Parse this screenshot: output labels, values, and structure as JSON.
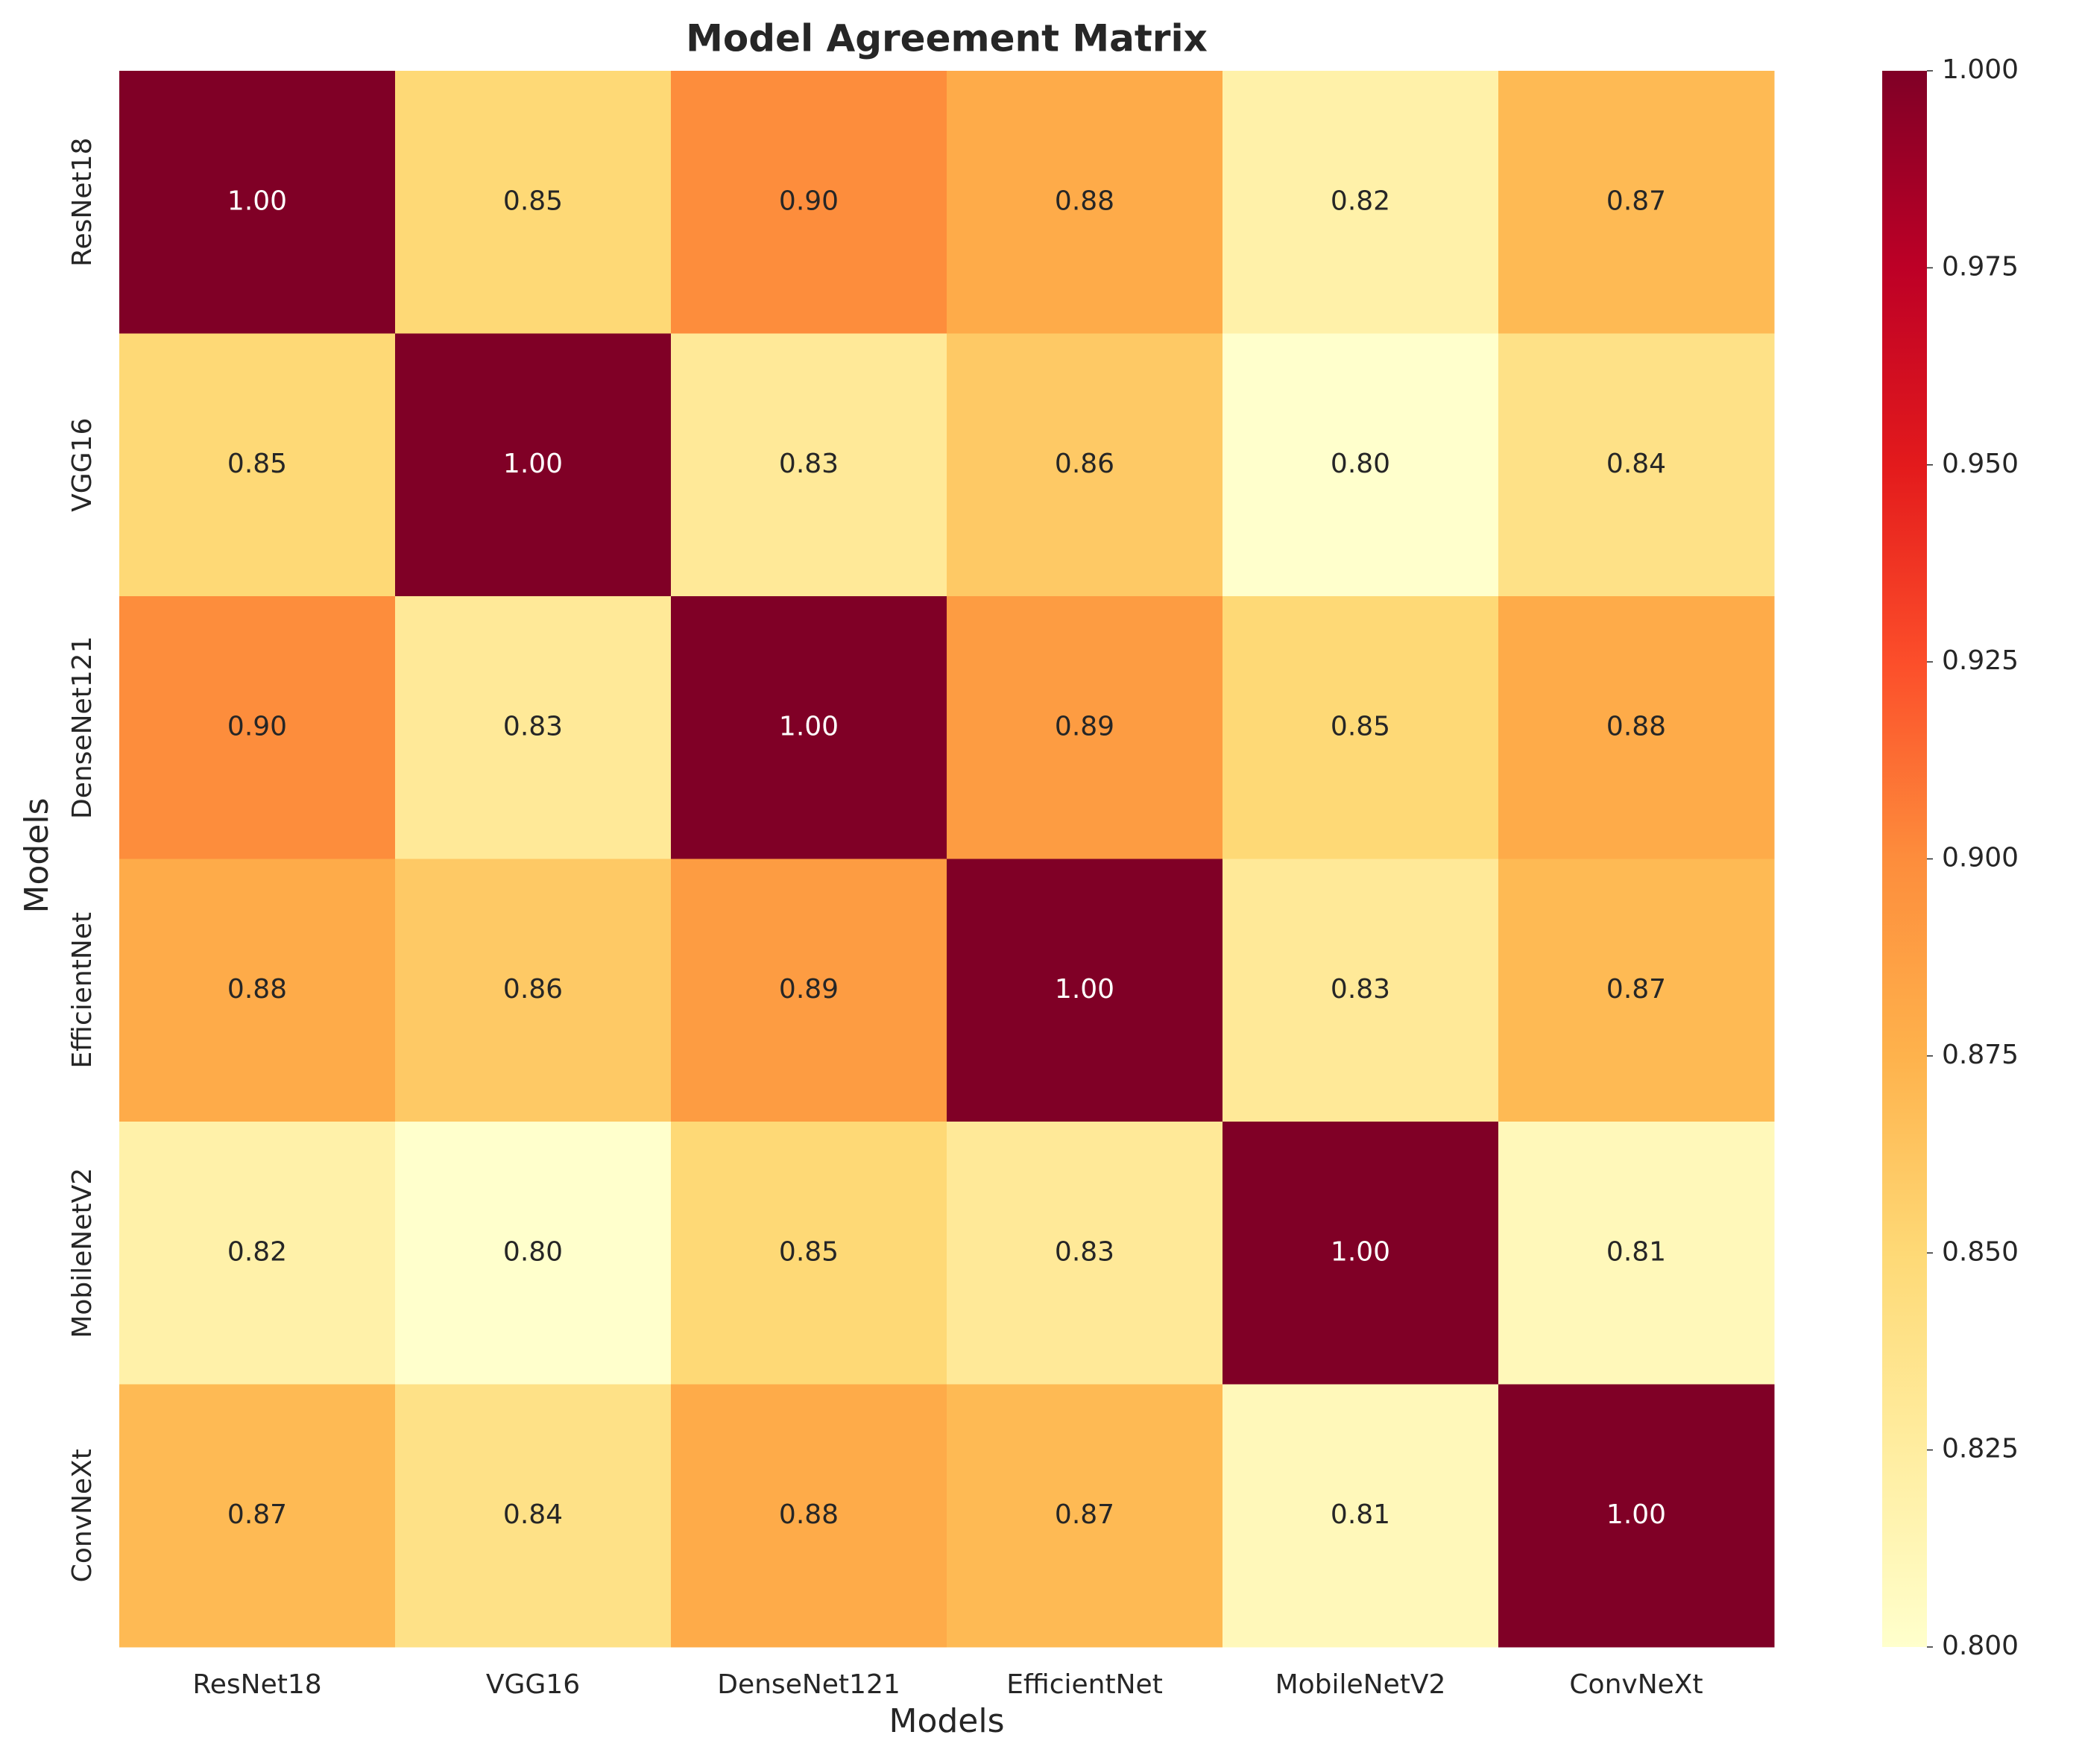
{
  "chart_data": {
    "type": "heatmap",
    "title": "Model Agreement Matrix",
    "xlabel": "Models",
    "ylabel": "Models",
    "x_categories": [
      "ResNet18",
      "VGG16",
      "DenseNet121",
      "EfficientNet",
      "MobileNetV2",
      "ConvNeXt"
    ],
    "y_categories": [
      "ResNet18",
      "VGG16",
      "DenseNet121",
      "EfficientNet",
      "MobileNetV2",
      "ConvNeXt"
    ],
    "values": [
      [
        1.0,
        0.85,
        0.9,
        0.88,
        0.82,
        0.87
      ],
      [
        0.85,
        1.0,
        0.83,
        0.86,
        0.8,
        0.84
      ],
      [
        0.9,
        0.83,
        1.0,
        0.89,
        0.85,
        0.88
      ],
      [
        0.88,
        0.86,
        0.89,
        1.0,
        0.83,
        0.87
      ],
      [
        0.82,
        0.8,
        0.85,
        0.83,
        1.0,
        0.81
      ],
      [
        0.87,
        0.84,
        0.88,
        0.87,
        0.81,
        1.0
      ]
    ],
    "value_format": "0.00",
    "colormap": "YlOrRd",
    "vmin": 0.8,
    "vmax": 1.0,
    "colorbar_ticks": [
      "0.800",
      "0.825",
      "0.850",
      "0.875",
      "0.900",
      "0.925",
      "0.950",
      "0.975",
      "1.000"
    ],
    "grid": false,
    "legend": "colorbar-right"
  }
}
